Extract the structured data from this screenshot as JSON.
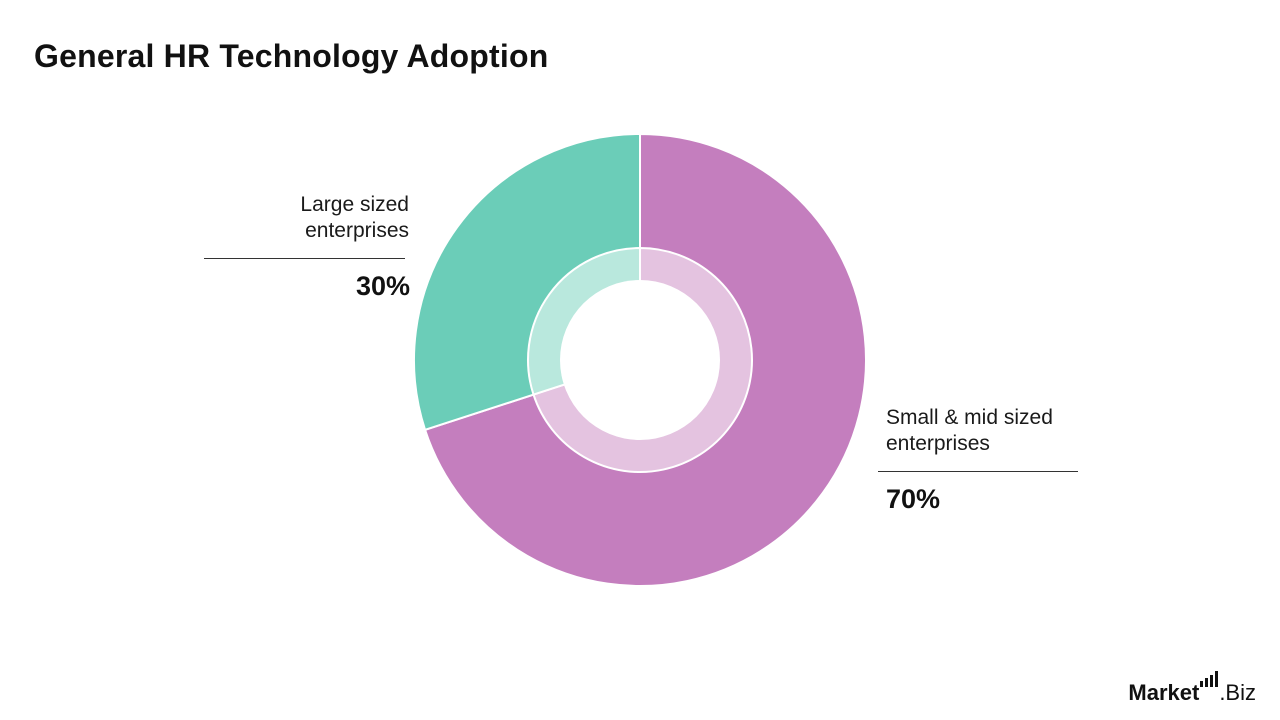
{
  "chart_data": {
    "type": "pie",
    "title": "General HR Technology Adoption",
    "slices": [
      {
        "label": "Small & mid sized enterprises",
        "value": 70,
        "value_label": "70%",
        "color": "#c47ebe",
        "inner_color": "#e4c3e0"
      },
      {
        "label": "Large sized enterprises",
        "value": 30,
        "value_label": "30%",
        "color": "#6bcdb8",
        "inner_color": "#b9e8dd"
      }
    ],
    "style": "donut"
  },
  "labels": {
    "large_line1": "Large sized",
    "large_line2": "enterprises",
    "small_line1": "Small & mid sized",
    "small_line2": "enterprises"
  },
  "brand": {
    "bold_part": "Market",
    "light_part": ".Biz"
  }
}
